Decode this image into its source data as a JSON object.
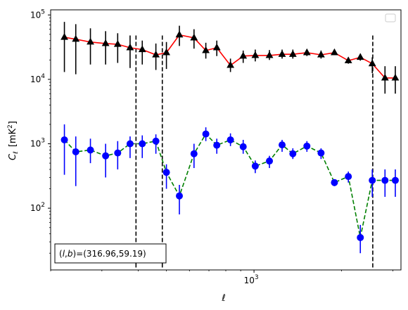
{
  "chart_data": {
    "type": "scatter",
    "title": "",
    "xlabel": "ℓ",
    "ylabel_main": "C",
    "ylabel_sub": "ℓ",
    "ylabel_unit": "[mK",
    "ylabel_unit_sup": "2",
    "ylabel_unit_close": "]",
    "x_scale": "log",
    "y_scale": "log",
    "xlim": [
      200,
      3200
    ],
    "ylim": [
      11,
      120000
    ],
    "legend": "top-right (empty)",
    "grid": false,
    "x_major_ticks": [
      {
        "value": 1000,
        "base": "10",
        "exp": "3"
      }
    ],
    "y_major_ticks": [
      {
        "value": 100,
        "base": "10",
        "exp": "2"
      },
      {
        "value": 1000,
        "base": "10",
        "exp": "3"
      },
      {
        "value": 10000,
        "base": "10",
        "exp": "4"
      },
      {
        "value": 100000,
        "base": "10",
        "exp": "5"
      }
    ],
    "vlines": [
      393,
      484,
      2560
    ],
    "annotation": {
      "text_prefix": "(",
      "text_l": "l",
      "text_mid": ",",
      "text_b": "b",
      "text_suffix": ")=(316.96,59.19)",
      "position": "bottom-left"
    },
    "series": [
      {
        "marker": "triangle",
        "color": "#000000",
        "line_color": "#ff0000",
        "line_style": "solid",
        "x": [
          223,
          244,
          274,
          309,
          340,
          375,
          413,
          460,
          500,
          554,
          622,
          683,
          745,
          830,
          918,
          1010,
          1130,
          1249,
          1360,
          1520,
          1700,
          1890,
          2110,
          2320,
          2550,
          2820,
          3060
        ],
        "y": [
          45000,
          42000,
          38000,
          36000,
          35000,
          31000,
          29000,
          24000,
          26000,
          49000,
          44000,
          28000,
          31000,
          16500,
          23000,
          23500,
          23500,
          24500,
          24500,
          26000,
          24000,
          26000,
          19500,
          22000,
          17500,
          10500,
          10500
        ],
        "err_low": [
          13000,
          12000,
          17000,
          17000,
          18000,
          15000,
          17000,
          14000,
          14500,
          33000,
          30000,
          21000,
          23000,
          13000,
          18000,
          19000,
          20000,
          21000,
          21000,
          23000,
          21000,
          24000,
          17500,
          19500,
          12500,
          6000,
          6000
        ],
        "err_high": [
          78000,
          72000,
          62000,
          56000,
          52000,
          48000,
          40000,
          36000,
          38000,
          68000,
          60000,
          37000,
          40000,
          21000,
          28000,
          29000,
          28500,
          29000,
          29000,
          29500,
          28000,
          29000,
          22000,
          25000,
          22000,
          16000,
          16000
        ]
      },
      {
        "marker": "circle",
        "color": "#0000ff",
        "line_color": "#008000",
        "line_style": "dashed",
        "x": [
          223,
          244,
          274,
          309,
          340,
          375,
          413,
          460,
          500,
          554,
          622,
          683,
          745,
          830,
          918,
          1010,
          1130,
          1249,
          1360,
          1520,
          1700,
          1890,
          2110,
          2320,
          2550,
          2820,
          3060
        ],
        "y": [
          1150,
          750,
          800,
          650,
          720,
          1000,
          1000,
          1100,
          360,
          155,
          700,
          1420,
          950,
          1150,
          900,
          450,
          540,
          960,
          700,
          920,
          720,
          250,
          310,
          35,
          270,
          270,
          270
        ],
        "err_low": [
          330,
          220,
          500,
          300,
          400,
          600,
          600,
          700,
          200,
          80,
          420,
          1100,
          700,
          920,
          700,
          350,
          420,
          750,
          580,
          750,
          580,
          220,
          250,
          20,
          150,
          150,
          150
        ],
        "err_high": [
          2000,
          1300,
          1200,
          1000,
          1100,
          1300,
          1350,
          1400,
          480,
          230,
          1000,
          1800,
          1200,
          1450,
          1150,
          550,
          650,
          1150,
          850,
          1100,
          850,
          280,
          370,
          55,
          400,
          400,
          400
        ]
      }
    ]
  }
}
